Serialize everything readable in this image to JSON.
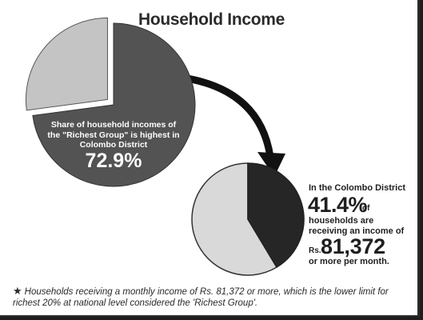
{
  "title": "Household Income",
  "chart_data": [
    {
      "type": "pie",
      "title": "",
      "slices": [
        {
          "value": 72.9,
          "color": "#535353"
        },
        {
          "value": 27.1,
          "color": "#c4c4c4"
        }
      ],
      "caption": "Share of household incomes of the \"Richest Group\" is highest  in Colombo District",
      "value_label": "72.9%"
    },
    {
      "type": "pie",
      "title": "",
      "slices": [
        {
          "value": 41.4,
          "color": "#262626"
        },
        {
          "value": 58.6,
          "color": "#d9d9d9"
        }
      ],
      "caption_line1": "In the Colombo District",
      "value_label": "41.4%",
      "value_suffix": "of",
      "caption_line2": "households are",
      "caption_line3": "receiving an income of",
      "currency": "Rs.",
      "amount": "81,372",
      "caption_line4": "or more per month."
    }
  ],
  "footnote": {
    "symbol": "★",
    "text": "Households receiving a monthly income of Rs. 81,372 or more, which is the lower limit for richest 20% at national level considered the 'Richest Group'."
  }
}
